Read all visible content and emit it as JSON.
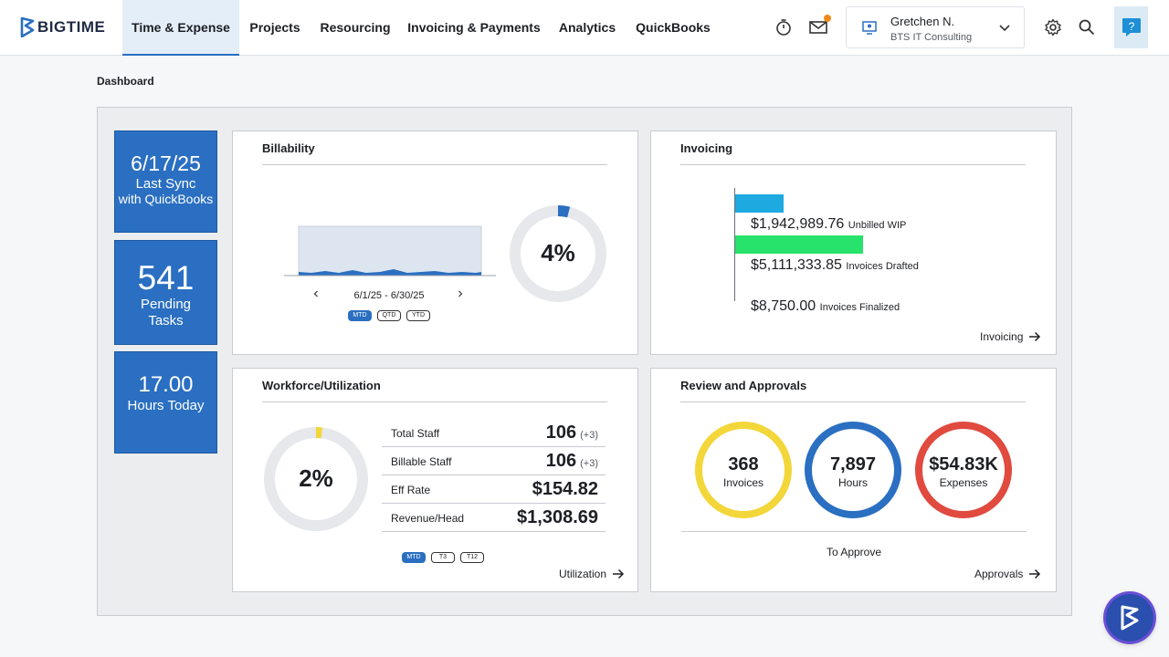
{
  "app": {
    "logo_text": "BIGTIME",
    "nav": [
      {
        "label": "Time & Expense",
        "active": true
      },
      {
        "label": "Projects",
        "active": false
      },
      {
        "label": "Resourcing",
        "active": false
      },
      {
        "label": "Invoicing & Payments",
        "active": false
      },
      {
        "label": "Analytics",
        "active": false
      },
      {
        "label": "QuickBooks",
        "active": false
      }
    ],
    "user": {
      "name": "Gretchen N.",
      "org": "BTS IT Consulting"
    },
    "icons": [
      "timer-icon",
      "mail-icon",
      "chevron-down-icon",
      "gear-icon",
      "search-icon",
      "help-icon"
    ],
    "accent_color": "#2a6fc1",
    "notification_dot_color": "#f08a17"
  },
  "page": {
    "title": "Dashboard"
  },
  "tiles": {
    "sync": {
      "value": "6/17/25",
      "label_line1": "Last Sync",
      "label_line2": "with QuickBooks"
    },
    "tasks": {
      "value": "541",
      "label_line1": "Pending",
      "label_line2": "Tasks"
    },
    "hours": {
      "value": "17.00",
      "label_line1": "Hours Today"
    }
  },
  "billability": {
    "title": "Billability",
    "date_range": "6/1/25 - 6/30/25",
    "percent_label": "4%",
    "percent_value": 4,
    "periods": [
      {
        "label": "MTD",
        "active": true
      },
      {
        "label": "QTD",
        "active": false
      },
      {
        "label": "YTD",
        "active": false
      }
    ]
  },
  "invoicing": {
    "title": "Invoicing",
    "link": "Invoicing",
    "items": [
      {
        "amount": "$1,942,989.76",
        "label": "Unbilled WIP",
        "value": 1942989.76,
        "color": "#1ea9e1"
      },
      {
        "amount": "$5,111,333.85",
        "label": "Invoices Drafted",
        "value": 5111333.85,
        "color": "#27e36b"
      },
      {
        "amount": "$8,750.00",
        "label": "Invoices Finalized",
        "value": 8750.0,
        "color": "#27e36b"
      }
    ]
  },
  "workforce": {
    "title": "Workforce/Utilization",
    "percent_label": "2%",
    "percent_value": 2,
    "link": "Utilization",
    "metrics": [
      {
        "label": "Total Staff",
        "value": "106",
        "delta": "(+3)"
      },
      {
        "label": "Billable Staff",
        "value": "106",
        "delta": "(+3)"
      },
      {
        "label": "Eff Rate",
        "value": "$154.82",
        "delta": ""
      },
      {
        "label": "Revenue/Head",
        "value": "$1,308.69",
        "delta": ""
      }
    ],
    "periods": [
      {
        "label": "MTD",
        "active": true
      },
      {
        "label": "T3",
        "active": false
      },
      {
        "label": "T12",
        "active": false
      }
    ]
  },
  "review": {
    "title": "Review and Approvals",
    "footer": "To Approve",
    "link": "Approvals",
    "rings": [
      {
        "value": "368",
        "label": "Invoices",
        "color": "#f3d63a"
      },
      {
        "value": "7,897",
        "label": "Hours",
        "color": "#2a6fc1"
      },
      {
        "value": "$54.83K",
        "label": "Expenses",
        "color": "#e04a3f"
      }
    ]
  }
}
